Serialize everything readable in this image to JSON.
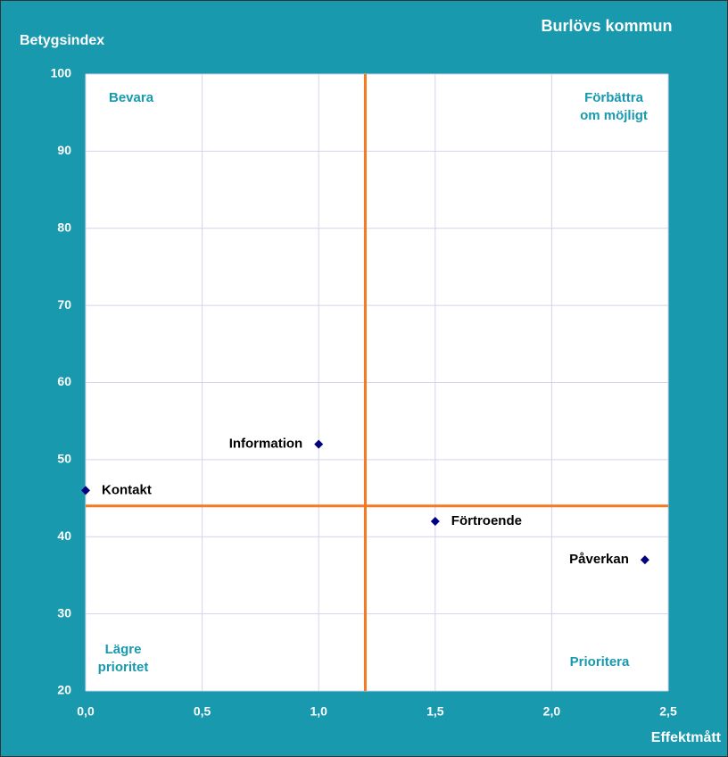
{
  "chart_data": {
    "type": "scatter",
    "title": "Burlövs kommun",
    "y_label": "Betygsindex",
    "x_label": "Effektmått",
    "series": [
      {
        "color": "#000080",
        "x": [
          0,
          1.0,
          1.5,
          2.4
        ],
        "values": [
          46,
          52,
          42,
          37
        ],
        "point_labels": [
          "Kontakt",
          "Information",
          "Förtroende",
          "Påverkan"
        ]
      }
    ],
    "xlim": [
      0,
      2.5
    ],
    "xticks": [
      {
        "value": 0,
        "label": "0,0"
      },
      {
        "value": 0.5,
        "label": "0,5"
      },
      {
        "value": 1.0,
        "label": "1,0"
      },
      {
        "value": 1.5,
        "label": "1,5"
      },
      {
        "value": 2.0,
        "label": "2,0"
      },
      {
        "value": 2.5,
        "label": "2,5"
      }
    ],
    "ylim": [
      20,
      100
    ],
    "yticks": [
      20,
      30,
      40,
      50,
      60,
      70,
      80,
      90,
      100
    ],
    "grid": true,
    "reference_lines": {
      "x": 1.2,
      "y": 44,
      "color": "#f47920"
    },
    "quadrant_labels": {
      "top_left": [
        "Bevara"
      ],
      "top_right": [
        "Förbättra",
        "om möjligt"
      ],
      "bottom_left": [
        "Lägre",
        "prioritet"
      ],
      "bottom_right": [
        "Prioritera"
      ]
    }
  }
}
